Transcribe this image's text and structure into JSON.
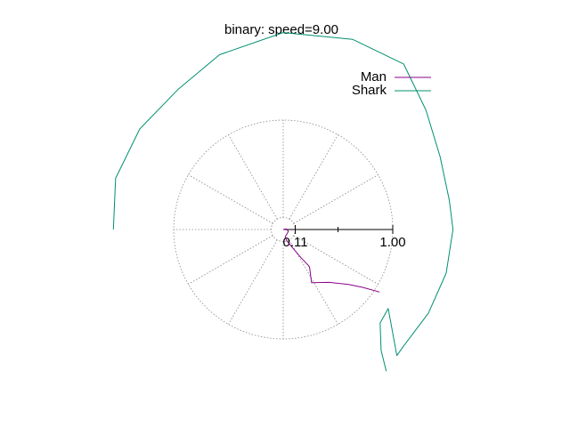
{
  "chart_data": {
    "type": "line",
    "subtype": "polar",
    "title": "binary: speed=9.00",
    "legend_position": "top-right",
    "grid": true,
    "r_ticks": [
      "0.11",
      "1.00"
    ],
    "r_tick_values": [
      0.11,
      1.0
    ],
    "r_minor_tick_values": [
      0.5
    ],
    "series": [
      {
        "name": "Man",
        "color": "#8b008b",
        "points": [
          {
            "theta_deg": 90,
            "r": 0.0
          },
          {
            "theta_deg": 10,
            "r": 0.03
          },
          {
            "theta_deg": -20,
            "r": 0.05
          },
          {
            "theta_deg": -75,
            "r": 0.07
          },
          {
            "theta_deg": -72,
            "r": 0.11
          },
          {
            "theta_deg": -58,
            "r": 0.3
          },
          {
            "theta_deg": -55,
            "r": 0.4
          },
          {
            "theta_deg": -55,
            "r": 0.42
          },
          {
            "theta_deg": -62,
            "r": 0.55
          },
          {
            "theta_deg": -49,
            "r": 0.64
          },
          {
            "theta_deg": -40,
            "r": 0.78
          },
          {
            "theta_deg": -36,
            "r": 0.9
          },
          {
            "theta_deg": -33,
            "r": 1.05
          }
        ]
      },
      {
        "name": "Shark",
        "color": "#009070",
        "points": [
          {
            "theta_deg": 180,
            "r": 1.55
          },
          {
            "theta_deg": 163,
            "r": 1.6
          },
          {
            "theta_deg": 145,
            "r": 1.6
          },
          {
            "theta_deg": 127,
            "r": 1.6
          },
          {
            "theta_deg": 110,
            "r": 1.7
          },
          {
            "theta_deg": 90,
            "r": 1.8
          },
          {
            "theta_deg": 70,
            "r": 1.85
          },
          {
            "theta_deg": 54,
            "r": 1.87
          },
          {
            "theta_deg": 40,
            "r": 1.7
          },
          {
            "theta_deg": 25,
            "r": 1.58
          },
          {
            "theta_deg": 10,
            "r": 1.54
          },
          {
            "theta_deg": 0,
            "r": 1.55
          },
          {
            "theta_deg": -15,
            "r": 1.54
          },
          {
            "theta_deg": -30,
            "r": 1.53
          },
          {
            "theta_deg": -44,
            "r": 1.53
          },
          {
            "theta_deg": -48,
            "r": 1.55
          },
          {
            "theta_deg": -37,
            "r": 1.2
          },
          {
            "theta_deg": -44,
            "r": 1.23
          },
          {
            "theta_deg": -51,
            "r": 1.42
          },
          {
            "theta_deg": -54,
            "r": 1.6
          }
        ]
      }
    ]
  }
}
